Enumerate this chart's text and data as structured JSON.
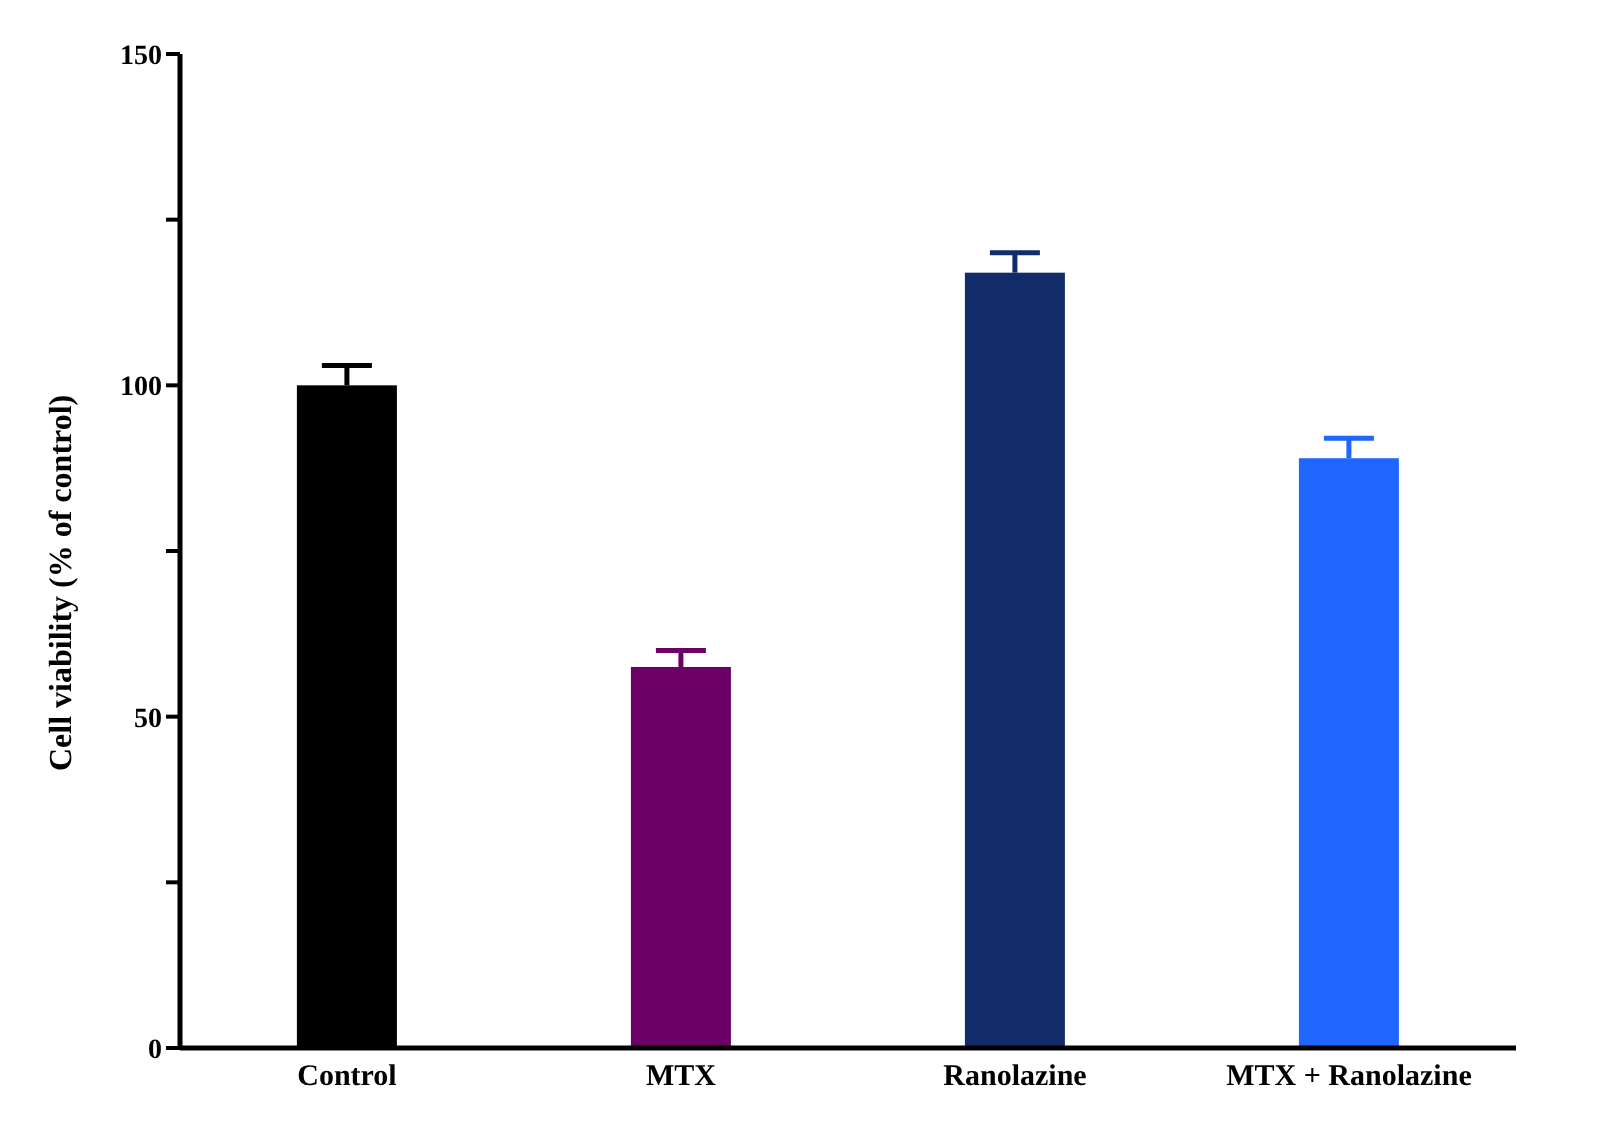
{
  "chart_data": {
    "type": "bar",
    "ylabel": "Cell viability (% of control)",
    "categories": [
      "Control",
      "MTX",
      "Ranolazine",
      "MTX + Ranolazine"
    ],
    "values": [
      100,
      57.5,
      117,
      89
    ],
    "colors": [
      "#000000",
      "#6b0066",
      "#122c69",
      "#1f66ff"
    ],
    "errors": [
      3,
      2.5,
      3,
      3
    ],
    "ylim": [
      0,
      150
    ],
    "yticks": [
      0,
      {
        "value": 25,
        "label": null
      },
      50,
      {
        "value": 75,
        "label": null
      },
      100,
      {
        "value": 125,
        "label": null
      },
      150
    ],
    "grid": false,
    "legend": false
  }
}
